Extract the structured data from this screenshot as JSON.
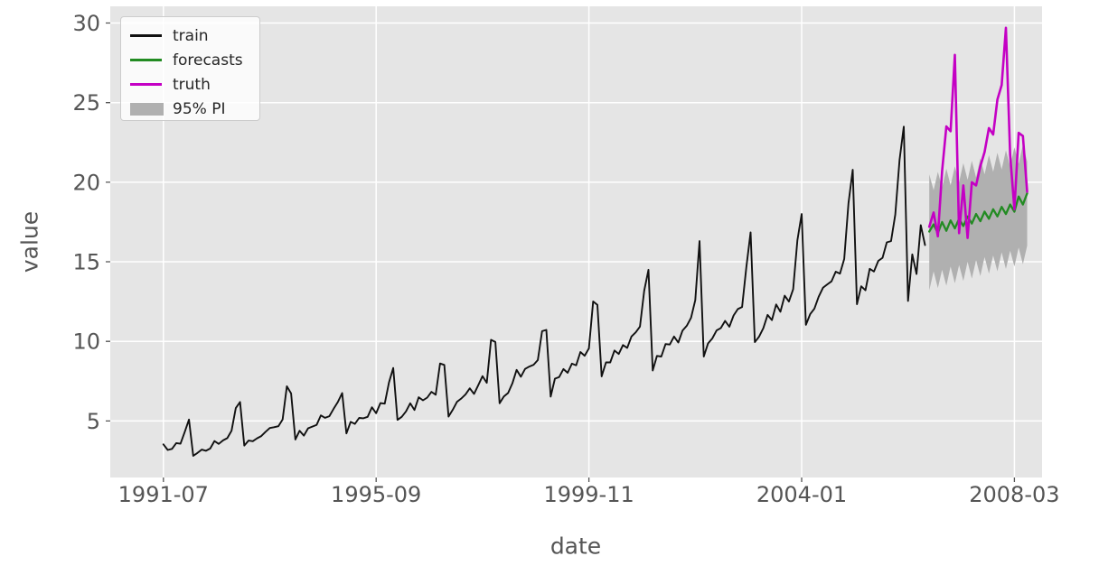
{
  "figure": {
    "background": "#ffffff",
    "plot_background": "#e5e5e5",
    "grid_color": "#ffffff",
    "tick_color": "#555555",
    "text_color": "#555555"
  },
  "chart_data": {
    "type": "line",
    "title": "",
    "xlabel": "date",
    "ylabel": "value",
    "grid": true,
    "legend_position": "upper-left",
    "x_start": "1991-07",
    "frequency": "monthly",
    "x_ticks": [
      {
        "index": 0,
        "label": "1991-07"
      },
      {
        "index": 50,
        "label": "1995-09"
      },
      {
        "index": 100,
        "label": "1999-11"
      },
      {
        "index": 150,
        "label": "2004-01"
      },
      {
        "index": 200,
        "label": "2008-03"
      }
    ],
    "y_ticks": [
      5,
      10,
      15,
      20,
      25,
      30
    ],
    "xlim_months": [
      -12.5,
      206.5
    ],
    "ylim": [
      1.45,
      31.05
    ],
    "legend": {
      "entries": [
        {
          "label": "train",
          "swatch": "line",
          "color": "#111111"
        },
        {
          "label": "forecasts",
          "swatch": "line",
          "color": "#228b22"
        },
        {
          "label": "truth",
          "swatch": "line",
          "color": "#c400c4"
        },
        {
          "label": "95% PI",
          "swatch": "patch",
          "color": "#b0b0b0"
        }
      ]
    },
    "series": [
      {
        "name": "train",
        "type": "line",
        "color": "#111111",
        "start_index": 0,
        "values": [
          3.53,
          3.18,
          3.25,
          3.61,
          3.57,
          4.31,
          5.09,
          2.81,
          2.99,
          3.2,
          3.13,
          3.27,
          3.74,
          3.56,
          3.78,
          3.92,
          4.39,
          5.81,
          6.19,
          3.45,
          3.77,
          3.73,
          3.91,
          4.05,
          4.32,
          4.56,
          4.61,
          4.67,
          5.09,
          7.18,
          6.73,
          3.84,
          4.39,
          4.08,
          4.54,
          4.65,
          4.75,
          5.35,
          5.2,
          5.3,
          5.77,
          6.2,
          6.75,
          4.22,
          4.95,
          4.82,
          5.19,
          5.17,
          5.26,
          5.86,
          5.49,
          6.12,
          6.09,
          7.42,
          8.33,
          5.07,
          5.26,
          5.6,
          6.11,
          5.69,
          6.49,
          6.3,
          6.47,
          6.83,
          6.65,
          8.61,
          8.52,
          5.28,
          5.71,
          6.21,
          6.41,
          6.67,
          7.05,
          6.7,
          7.25,
          7.82,
          7.4,
          10.1,
          9.96,
          6.11,
          6.54,
          6.76,
          7.36,
          8.21,
          7.78,
          8.27,
          8.42,
          8.53,
          8.83,
          10.64,
          10.72,
          6.53,
          7.66,
          7.76,
          8.26,
          8.03,
          8.6,
          8.5,
          9.33,
          9.1,
          9.56,
          12.51,
          12.29,
          7.8,
          8.68,
          8.68,
          9.43,
          9.21,
          9.77,
          9.59,
          10.31,
          10.57,
          10.93,
          13.19,
          14.5,
          8.17,
          9.09,
          9.05,
          9.83,
          9.8,
          10.31,
          9.93,
          10.68,
          10.98,
          11.48,
          12.59,
          16.3,
          9.05,
          9.87,
          10.18,
          10.69,
          10.84,
          11.29,
          10.92,
          11.63,
          12.03,
          12.16,
          14.66,
          16.85,
          9.95,
          10.3,
          10.83,
          11.66,
          11.34,
          12.32,
          11.86,
          12.87,
          12.5,
          13.28,
          16.36,
          18.0,
          11.04,
          11.71,
          12.06,
          12.8,
          13.37,
          13.58,
          13.77,
          14.38,
          14.26,
          15.18,
          18.67,
          20.78,
          12.34,
          13.46,
          13.21,
          14.56,
          14.39,
          15.06,
          15.25,
          16.22,
          16.3,
          17.97,
          21.39,
          23.49,
          12.54,
          15.47,
          14.23,
          17.3,
          16.05
        ]
      },
      {
        "name": "forecasts",
        "type": "line",
        "color": "#228b22",
        "start_index": 180,
        "values": [
          16.9,
          17.35,
          16.8,
          17.5,
          16.95,
          17.6,
          17.1,
          17.7,
          17.25,
          17.85,
          17.4,
          18.0,
          17.55,
          18.15,
          17.7,
          18.3,
          17.85,
          18.45,
          18.0,
          18.6,
          18.15,
          19.1,
          18.6,
          19.3
        ]
      },
      {
        "name": "truth",
        "type": "line",
        "color": "#c400c4",
        "start_index": 180,
        "values": [
          17.2,
          18.1,
          16.6,
          20.7,
          23.5,
          23.2,
          28.0,
          16.8,
          19.8,
          16.5,
          20.0,
          19.8,
          21.0,
          21.9,
          23.4,
          23.0,
          25.2,
          26.1,
          29.7,
          21.7,
          18.3,
          23.1,
          22.9,
          19.4
        ]
      },
      {
        "name": "95% PI",
        "type": "band",
        "color": "#b0b0b0",
        "start_index": 180,
        "lower": [
          13.2,
          14.4,
          13.35,
          14.5,
          13.5,
          14.7,
          13.65,
          14.8,
          13.8,
          15.0,
          13.95,
          15.1,
          14.1,
          15.3,
          14.25,
          15.4,
          14.4,
          15.6,
          14.55,
          15.7,
          14.7,
          15.9,
          14.85,
          16.0
        ],
        "upper": [
          20.5,
          19.5,
          20.65,
          19.65,
          20.85,
          19.8,
          21.0,
          20.0,
          21.2,
          20.15,
          21.35,
          20.3,
          21.5,
          20.5,
          21.7,
          20.65,
          21.85,
          20.8,
          22.0,
          21.0,
          22.2,
          21.15,
          22.35,
          21.3
        ]
      }
    ]
  }
}
